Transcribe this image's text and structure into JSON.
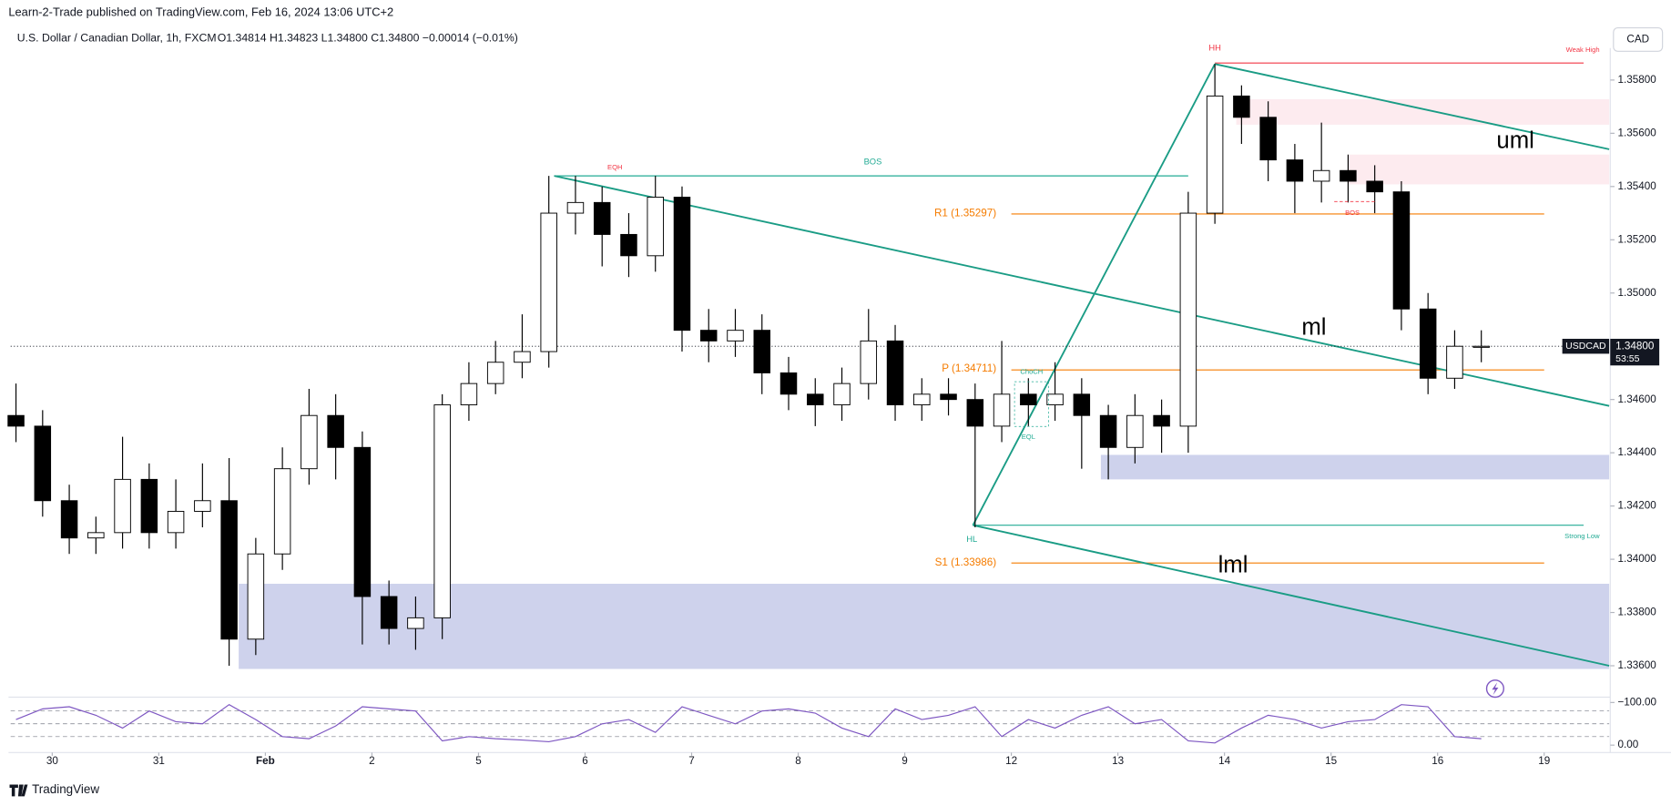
{
  "header": {
    "published": "Learn-2-Trade published on TradingView.com, Feb 16, 2024 13:06 UTC+2",
    "symbol": "U.S. Dollar / Canadian Dollar, 1h, FXCM",
    "ohlc": "O1.34814 H1.34823 L1.34800 C1.34800 −0.00014 (−0.01%)",
    "currency": "CAD"
  },
  "footer": {
    "brand": "TradingView"
  },
  "chart_data": [
    {
      "type": "candlestick",
      "x": [
        -0.34,
        -0.09,
        0.16,
        0.41,
        0.66,
        0.91,
        1.16,
        1.41,
        1.66,
        1.91,
        2.16,
        2.41,
        2.66,
        2.91,
        3.16,
        3.41,
        3.66,
        3.91,
        4.16,
        4.41,
        4.66,
        4.91,
        5.16,
        5.41,
        5.66,
        5.91,
        6.16,
        6.41,
        6.66,
        6.91,
        7.16,
        7.41,
        7.66,
        7.91,
        8.16,
        8.41,
        8.66,
        8.91,
        9.16,
        9.41,
        9.66,
        9.91,
        10.16,
        10.41,
        10.66,
        10.91,
        11.16,
        11.41,
        11.66,
        11.91,
        12.16,
        12.41,
        12.66,
        12.91,
        13.16,
        13.41
      ],
      "open": [
        1.3454,
        1.345,
        1.3422,
        1.3408,
        1.341,
        1.343,
        1.341,
        1.3418,
        1.3422,
        1.337,
        1.3402,
        1.3434,
        1.3454,
        1.3442,
        1.3386,
        1.3374,
        1.3378,
        1.3458,
        1.3466,
        1.3474,
        1.3478,
        1.353,
        1.3534,
        1.3522,
        1.3514,
        1.3536,
        1.3486,
        1.3482,
        1.3486,
        1.347,
        1.3462,
        1.3458,
        1.3466,
        1.3482,
        1.3458,
        1.3462,
        1.346,
        1.345,
        1.3462,
        1.3458,
        1.3462,
        1.3454,
        1.3442,
        1.3454,
        1.345,
        1.353,
        1.3574,
        1.3566,
        1.355,
        1.3542,
        1.3546,
        1.3542,
        1.3538,
        1.3494,
        1.3468,
        1.348
      ],
      "high": [
        1.3466,
        1.3456,
        1.3428,
        1.3416,
        1.3446,
        1.3436,
        1.343,
        1.3436,
        1.3438,
        1.3408,
        1.3442,
        1.3464,
        1.3462,
        1.3448,
        1.3392,
        1.3386,
        1.3462,
        1.3474,
        1.3482,
        1.3492,
        1.3544,
        1.3544,
        1.354,
        1.353,
        1.3544,
        1.354,
        1.3494,
        1.3494,
        1.3492,
        1.3476,
        1.3468,
        1.3472,
        1.3494,
        1.3488,
        1.3468,
        1.3468,
        1.3466,
        1.3482,
        1.3468,
        1.3474,
        1.3468,
        1.3458,
        1.3462,
        1.346,
        1.3538,
        1.3586,
        1.3578,
        1.3572,
        1.3556,
        1.3564,
        1.3552,
        1.3548,
        1.3542,
        1.35,
        1.3486,
        1.3486
      ],
      "low": [
        1.3444,
        1.3416,
        1.3402,
        1.3402,
        1.3404,
        1.3404,
        1.3404,
        1.3412,
        1.336,
        1.3364,
        1.3396,
        1.3428,
        1.343,
        1.3368,
        1.3368,
        1.3366,
        1.337,
        1.3452,
        1.3462,
        1.3468,
        1.3472,
        1.3522,
        1.351,
        1.3506,
        1.3508,
        1.3478,
        1.3474,
        1.3476,
        1.3462,
        1.3456,
        1.345,
        1.3452,
        1.346,
        1.3452,
        1.3452,
        1.3454,
        1.3412,
        1.3444,
        1.345,
        1.3452,
        1.3434,
        1.343,
        1.3436,
        1.344,
        1.344,
        1.3526,
        1.3556,
        1.3542,
        1.353,
        1.3534,
        1.3534,
        1.353,
        1.3486,
        1.3462,
        1.3464,
        1.3474
      ],
      "close": [
        1.345,
        1.3422,
        1.3408,
        1.341,
        1.343,
        1.341,
        1.3418,
        1.3422,
        1.337,
        1.3402,
        1.3434,
        1.3454,
        1.3442,
        1.3386,
        1.3374,
        1.3378,
        1.3458,
        1.3466,
        1.3474,
        1.3478,
        1.353,
        1.3534,
        1.3522,
        1.3514,
        1.3536,
        1.3486,
        1.3482,
        1.3486,
        1.347,
        1.3462,
        1.3458,
        1.3466,
        1.3482,
        1.3458,
        1.3462,
        1.346,
        1.345,
        1.3462,
        1.3458,
        1.3462,
        1.3454,
        1.3442,
        1.3454,
        1.345,
        1.353,
        1.3574,
        1.3566,
        1.355,
        1.3542,
        1.3546,
        1.3542,
        1.3538,
        1.3494,
        1.3468,
        1.348,
        1.348
      ],
      "up_color": "#ffffff",
      "down_color": "#000000",
      "xlim": [
        -0.39,
        14.61
      ],
      "ylim": [
        1.3592,
        1.3349
      ],
      "xticks": [
        {
          "value": 0,
          "label": "30"
        },
        {
          "value": 1,
          "label": "31"
        },
        {
          "value": 2,
          "label": "Feb"
        },
        {
          "value": 3,
          "label": "2"
        },
        {
          "value": 4,
          "label": "5"
        },
        {
          "value": 5,
          "label": "6"
        },
        {
          "value": 6,
          "label": "7"
        },
        {
          "value": 7,
          "label": "8"
        },
        {
          "value": 8,
          "label": "9"
        },
        {
          "value": 9,
          "label": "12"
        },
        {
          "value": 10,
          "label": "13"
        },
        {
          "value": 11,
          "label": "14"
        },
        {
          "value": 12,
          "label": "15"
        },
        {
          "value": 13,
          "label": "16"
        },
        {
          "value": 14,
          "label": "19"
        }
      ],
      "yticks": [
        {
          "value": 1.358,
          "label": "1.35800"
        },
        {
          "value": 1.356,
          "label": "1.35600"
        },
        {
          "value": 1.354,
          "label": "1.35400"
        },
        {
          "value": 1.352,
          "label": "1.35200"
        },
        {
          "value": 1.35,
          "label": "1.35000"
        },
        {
          "value": 1.346,
          "label": "1.34600"
        },
        {
          "value": 1.344,
          "label": "1.34400"
        },
        {
          "value": 1.342,
          "label": "1.34200"
        },
        {
          "value": 1.34,
          "label": "1.34000"
        },
        {
          "value": 1.338,
          "label": "1.33800"
        },
        {
          "value": 1.336,
          "label": "1.33600"
        }
      ],
      "grid": false,
      "last_price": {
        "value": 1.348,
        "label": "1.34800"
      },
      "symbol_label": "USDCAD",
      "countdown": "53:55",
      "zones": [
        {
          "x": [
            1.75,
            14.61
          ],
          "y": [
            1.33908,
            1.33588
          ],
          "color": "#c5cae9"
        },
        {
          "x": [
            9.84,
            14.61
          ],
          "y": [
            1.34392,
            1.343
          ],
          "color": "#c5cae9"
        },
        {
          "x": [
            11.11,
            14.61
          ],
          "y": [
            1.35728,
            1.35632
          ],
          "color": "#fde8ec"
        },
        {
          "x": [
            12.16,
            14.61
          ],
          "y": [
            1.3552,
            1.35408
          ],
          "color": "#fde8ec"
        }
      ],
      "levels": [
        {
          "label": "BOS",
          "value": 1.3544,
          "x": [
            4.71,
            10.66
          ],
          "color": "#22ab94"
        },
        {
          "label": "Weak High",
          "value": 1.35864,
          "x": [
            10.91,
            14.37
          ],
          "color": "#f23645"
        },
        {
          "label": "R1 (1.35297)",
          "value": 1.35297,
          "x": [
            9.0,
            14.0
          ],
          "color": "#f57c00"
        },
        {
          "label": "P (1.34711)",
          "value": 1.34711,
          "x": [
            9.0,
            14.0
          ],
          "color": "#f57c00"
        },
        {
          "label": "S1 (1.33986)",
          "value": 1.33986,
          "x": [
            9.0,
            14.0
          ],
          "color": "#f57c00"
        },
        {
          "label": "Strong Low",
          "value": 1.34128,
          "x": [
            8.64,
            14.37
          ],
          "color": "#22ab94"
        }
      ],
      "trendlines": [
        {
          "label": "uml",
          "x": [
            10.91,
            14.61
          ],
          "y": [
            1.3586,
            1.3554
          ],
          "color": "#1a9c85"
        },
        {
          "label": "ml",
          "x": [
            4.71,
            14.61
          ],
          "y": [
            1.3544,
            1.34576
          ],
          "color": "#1a9c85"
        },
        {
          "label": "lml",
          "x": [
            8.64,
            14.61
          ],
          "y": [
            1.34128,
            1.336
          ],
          "color": "#1a9c85"
        },
        {
          "x": [
            8.64,
            10.91
          ],
          "y": [
            1.34128,
            1.3586
          ],
          "color": "#1a9c85"
        }
      ],
      "annotations": [
        "HH",
        "EQH",
        "HL",
        "ChoCH",
        "EQL",
        "BOS"
      ]
    },
    {
      "type": "line",
      "x": [
        -0.34,
        -0.09,
        0.16,
        0.41,
        0.66,
        0.91,
        1.16,
        1.41,
        1.66,
        1.91,
        2.16,
        2.41,
        2.66,
        2.91,
        3.16,
        3.41,
        3.66,
        3.91,
        4.16,
        4.41,
        4.66,
        4.91,
        5.16,
        5.41,
        5.66,
        5.91,
        6.16,
        6.41,
        6.66,
        6.91,
        7.16,
        7.41,
        7.66,
        7.91,
        8.16,
        8.41,
        8.66,
        8.91,
        9.16,
        9.41,
        9.66,
        9.91,
        10.16,
        10.41,
        10.66,
        10.91,
        11.16,
        11.41,
        11.66,
        11.91,
        12.16,
        12.41,
        12.66,
        12.91,
        13.16,
        13.41
      ],
      "values": [
        -60,
        -85,
        -90,
        -70,
        -40,
        -80,
        -55,
        -50,
        -95,
        -60,
        -20,
        -15,
        -45,
        -90,
        -85,
        -80,
        -10,
        -20,
        -15,
        -12,
        -8,
        -20,
        -50,
        -60,
        -30,
        -90,
        -70,
        -50,
        -80,
        -85,
        -75,
        -40,
        -20,
        -85,
        -60,
        -70,
        -90,
        -20,
        -60,
        -40,
        -70,
        -90,
        -50,
        -60,
        -10,
        -5,
        -40,
        -70,
        -60,
        -40,
        -55,
        -60,
        -95,
        -90,
        -20,
        -15
      ],
      "color": "#7e57c2",
      "xlim": [
        -0.39,
        14.61
      ],
      "ylim": [
        -110,
        10
      ],
      "yticks": [
        {
          "value": 0,
          "label": "0.00"
        },
        {
          "value": -100,
          "label": "−100.00"
        }
      ],
      "levels": [
        -20,
        -50,
        -80
      ]
    }
  ]
}
